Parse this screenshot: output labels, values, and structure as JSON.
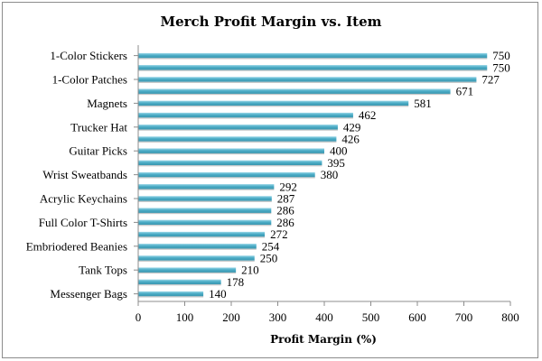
{
  "chart_data": {
    "type": "bar",
    "orientation": "horizontal",
    "title": "Merch Profit Margin vs. Item",
    "xlabel": "Profit Margin (%)",
    "ylabel": "",
    "xlim": [
      0,
      800
    ],
    "xticks": [
      "0",
      "100",
      "200",
      "300",
      "400",
      "500",
      "600",
      "700",
      "800"
    ],
    "grid": false,
    "bar_color": "#4bacc6",
    "category_labels": [
      "1-Color Stickers",
      "1-Color Patches",
      "Magnets",
      "Trucker Hat",
      "Guitar Picks",
      "Wrist Sweatbands",
      "Acrylic Keychains",
      "Full Color T-Shirts",
      "Embriodered Beanies",
      "Tank Tops",
      "Messenger Bags"
    ],
    "values": [
      750,
      750,
      727,
      671,
      581,
      462,
      429,
      426,
      400,
      395,
      380,
      292,
      287,
      286,
      286,
      272,
      254,
      250,
      210,
      178,
      140
    ],
    "value_labels": [
      "750",
      "750",
      "727",
      "671",
      "581",
      "462",
      "429",
      "426",
      "400",
      "395",
      "380",
      "292",
      "287",
      "286",
      "286",
      "272",
      "254",
      "250",
      "210",
      "178",
      "140"
    ]
  }
}
